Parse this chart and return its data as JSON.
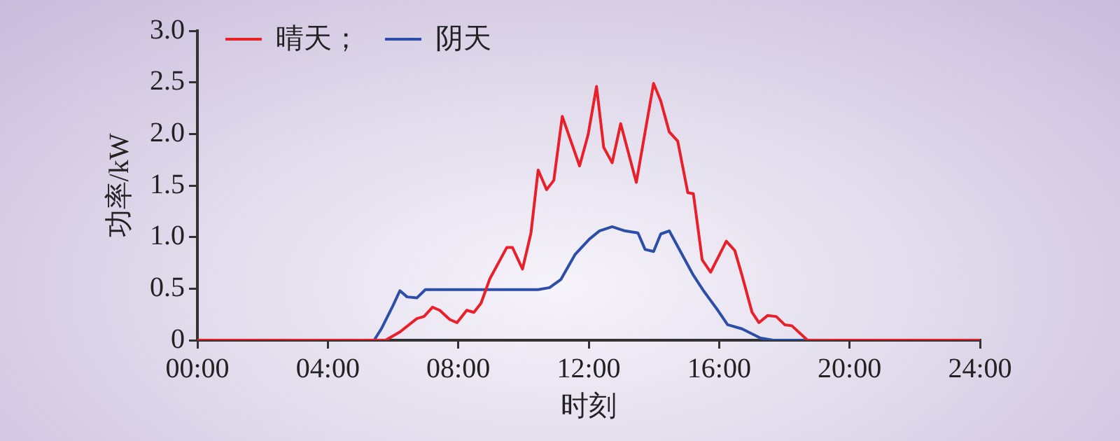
{
  "chart_data": {
    "type": "line",
    "xlabel": "时刻",
    "ylabel": "功率/kW",
    "xlim": [
      0,
      24
    ],
    "xticks": [
      {
        "value": 0,
        "label": "00:00"
      },
      {
        "value": 4,
        "label": "04:00"
      },
      {
        "value": 8,
        "label": "08:00"
      },
      {
        "value": 12,
        "label": "12:00"
      },
      {
        "value": 16,
        "label": "16:00"
      },
      {
        "value": 20,
        "label": "20:00"
      },
      {
        "value": 24,
        "label": "24:00"
      }
    ],
    "ylim": [
      0,
      3
    ],
    "yticks": [
      0,
      0.5,
      {
        "value": 1,
        "label": "1.0"
      },
      1.5,
      {
        "value": 2,
        "label": "2.0"
      },
      2.5,
      {
        "value": 3,
        "label": "3.0"
      }
    ],
    "grid": false,
    "legend": "top left",
    "marker": "none",
    "line_style": "solid",
    "series": [
      {
        "name": "晴天；",
        "color": "#e8202a",
        "x": [
          0,
          5.77,
          6.21,
          6.73,
          6.95,
          7.21,
          7.43,
          7.74,
          7.96,
          8.26,
          8.48,
          8.7,
          8.96,
          9.49,
          9.66,
          9.97,
          10.23,
          10.45,
          10.71,
          10.93,
          11.19,
          11.72,
          11.98,
          12.24,
          12.46,
          12.72,
          12.98,
          13.46,
          13.99,
          14.21,
          14.47,
          14.73,
          15.04,
          15.21,
          15.48,
          15.74,
          16.22,
          16.48,
          16.7,
          17.01,
          17.22,
          17.49,
          17.75,
          18.01,
          18.23,
          18.71,
          24
        ],
        "values": [
          0,
          0,
          0.08,
          0.21,
          0.23,
          0.32,
          0.29,
          0.2,
          0.17,
          0.29,
          0.27,
          0.36,
          0.59,
          0.9,
          0.9,
          0.69,
          1.04,
          1.65,
          1.46,
          1.55,
          2.17,
          1.69,
          1.99,
          2.46,
          1.87,
          1.72,
          2.1,
          1.53,
          2.49,
          2.32,
          2.02,
          1.93,
          1.43,
          1.42,
          0.78,
          0.66,
          0.96,
          0.87,
          0.63,
          0.27,
          0.17,
          0.24,
          0.23,
          0.15,
          0.14,
          0,
          0
        ]
      },
      {
        "name": "阴天",
        "color": "#2c4ea6",
        "x": [
          0,
          5.42,
          5.64,
          5.99,
          6.21,
          6.43,
          6.73,
          6.99,
          10.45,
          10.8,
          11.15,
          11.58,
          12.02,
          12.33,
          12.72,
          13.11,
          13.51,
          13.73,
          13.99,
          14.21,
          14.47,
          15.21,
          15.52,
          15.96,
          16.26,
          16.7,
          17.27,
          17.66,
          24
        ],
        "values": [
          0,
          0,
          0.11,
          0.33,
          0.48,
          0.42,
          0.41,
          0.49,
          0.49,
          0.51,
          0.59,
          0.83,
          0.98,
          1.06,
          1.1,
          1.06,
          1.04,
          0.88,
          0.86,
          1.03,
          1.06,
          0.63,
          0.48,
          0.29,
          0.15,
          0.11,
          0.02,
          0,
          0
        ]
      }
    ]
  }
}
